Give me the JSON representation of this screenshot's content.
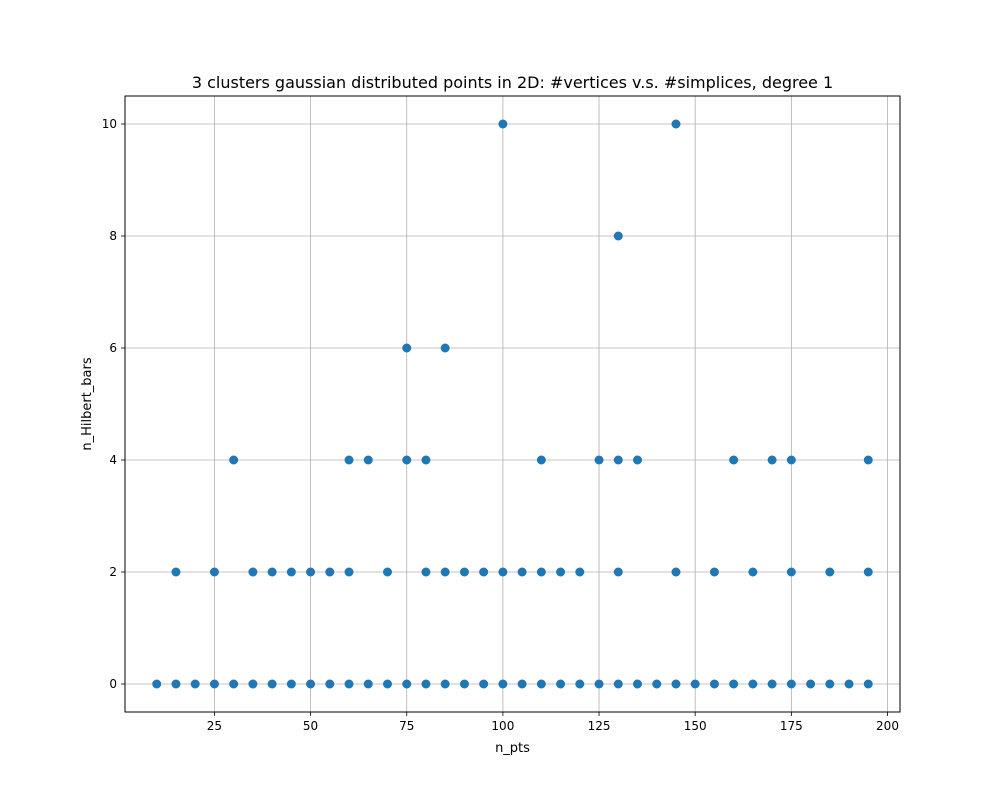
{
  "chart_data": {
    "type": "scatter",
    "title": "3 clusters gaussian distributed points in 2D: #vertices v.s. #simplices, degree 1",
    "xlabel": "n_pts",
    "ylabel": "n_Hilbert_bars",
    "xlim": [
      1.75,
      203.25
    ],
    "ylim": [
      -0.5,
      10.5
    ],
    "xticks": [
      25,
      50,
      75,
      100,
      125,
      150,
      175,
      200
    ],
    "yticks": [
      0,
      2,
      4,
      6,
      8,
      10
    ],
    "grid": true,
    "marker_color": "#1f77b4",
    "points": [
      [
        10,
        0
      ],
      [
        15,
        0
      ],
      [
        20,
        0
      ],
      [
        25,
        0
      ],
      [
        30,
        0
      ],
      [
        35,
        0
      ],
      [
        40,
        0
      ],
      [
        45,
        0
      ],
      [
        50,
        0
      ],
      [
        55,
        0
      ],
      [
        60,
        0
      ],
      [
        65,
        0
      ],
      [
        70,
        0
      ],
      [
        75,
        0
      ],
      [
        80,
        0
      ],
      [
        85,
        0
      ],
      [
        90,
        0
      ],
      [
        95,
        0
      ],
      [
        100,
        0
      ],
      [
        105,
        0
      ],
      [
        110,
        0
      ],
      [
        115,
        0
      ],
      [
        120,
        0
      ],
      [
        125,
        0
      ],
      [
        130,
        0
      ],
      [
        135,
        0
      ],
      [
        140,
        0
      ],
      [
        145,
        0
      ],
      [
        150,
        0
      ],
      [
        155,
        0
      ],
      [
        160,
        0
      ],
      [
        165,
        0
      ],
      [
        170,
        0
      ],
      [
        175,
        0
      ],
      [
        180,
        0
      ],
      [
        185,
        0
      ],
      [
        190,
        0
      ],
      [
        195,
        0
      ],
      [
        15,
        2
      ],
      [
        25,
        2
      ],
      [
        35,
        2
      ],
      [
        40,
        2
      ],
      [
        45,
        2
      ],
      [
        50,
        2
      ],
      [
        55,
        2
      ],
      [
        60,
        2
      ],
      [
        70,
        2
      ],
      [
        80,
        2
      ],
      [
        85,
        2
      ],
      [
        90,
        2
      ],
      [
        95,
        2
      ],
      [
        100,
        2
      ],
      [
        105,
        2
      ],
      [
        110,
        2
      ],
      [
        115,
        2
      ],
      [
        120,
        2
      ],
      [
        130,
        2
      ],
      [
        145,
        2
      ],
      [
        155,
        2
      ],
      [
        165,
        2
      ],
      [
        175,
        2
      ],
      [
        185,
        2
      ],
      [
        195,
        2
      ],
      [
        30,
        4
      ],
      [
        60,
        4
      ],
      [
        65,
        4
      ],
      [
        75,
        4
      ],
      [
        80,
        4
      ],
      [
        110,
        4
      ],
      [
        125,
        4
      ],
      [
        130,
        4
      ],
      [
        135,
        4
      ],
      [
        160,
        4
      ],
      [
        170,
        4
      ],
      [
        175,
        4
      ],
      [
        195,
        4
      ],
      [
        75,
        6
      ],
      [
        85,
        6
      ],
      [
        130,
        8
      ],
      [
        100,
        10
      ],
      [
        145,
        10
      ]
    ]
  }
}
